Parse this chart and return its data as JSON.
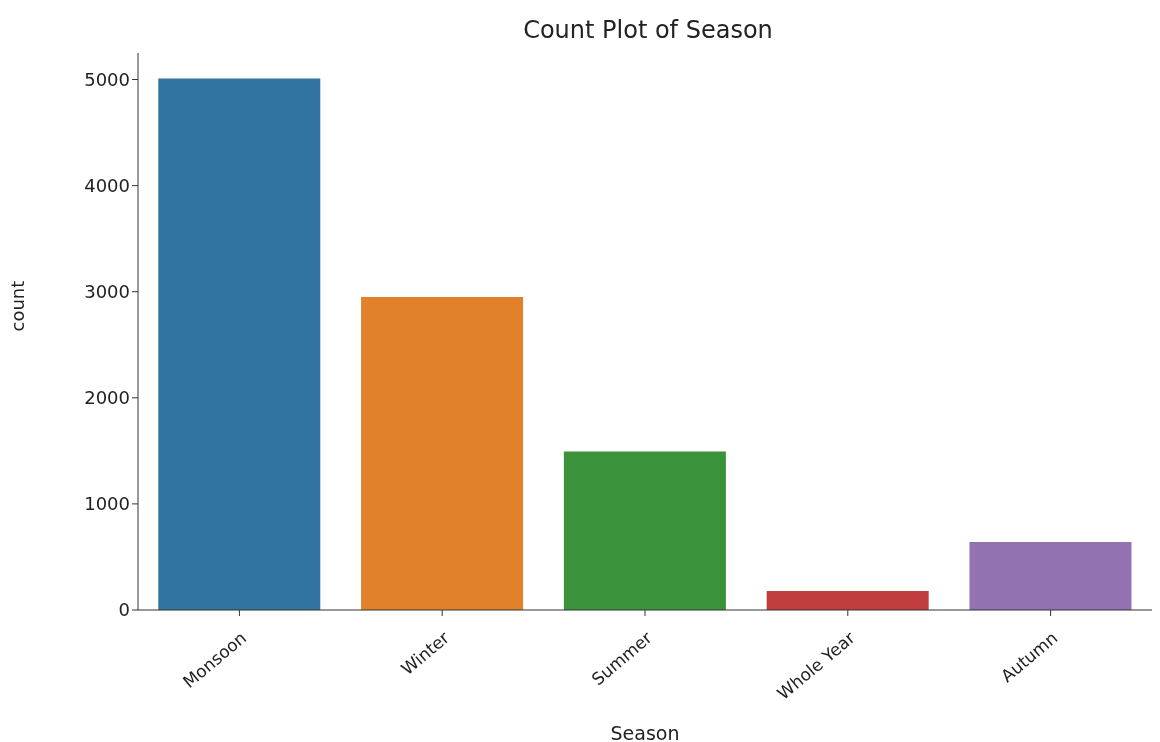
{
  "chart_data": {
    "type": "bar",
    "title": "Count Plot of Season",
    "xlabel": "Season",
    "ylabel": "count",
    "categories": [
      "Monsoon",
      "Winter",
      "Summer",
      "Whole Year",
      "Autumn"
    ],
    "values": [
      5010,
      2950,
      1495,
      180,
      640
    ],
    "colors": [
      "#3274a1",
      "#e1812c",
      "#3a923a",
      "#c03d3e",
      "#9372b2"
    ],
    "ylim": [
      0,
      5250
    ],
    "yticks": [
      0,
      1000,
      2000,
      3000,
      4000,
      5000
    ],
    "grid": false,
    "legend": false
  }
}
